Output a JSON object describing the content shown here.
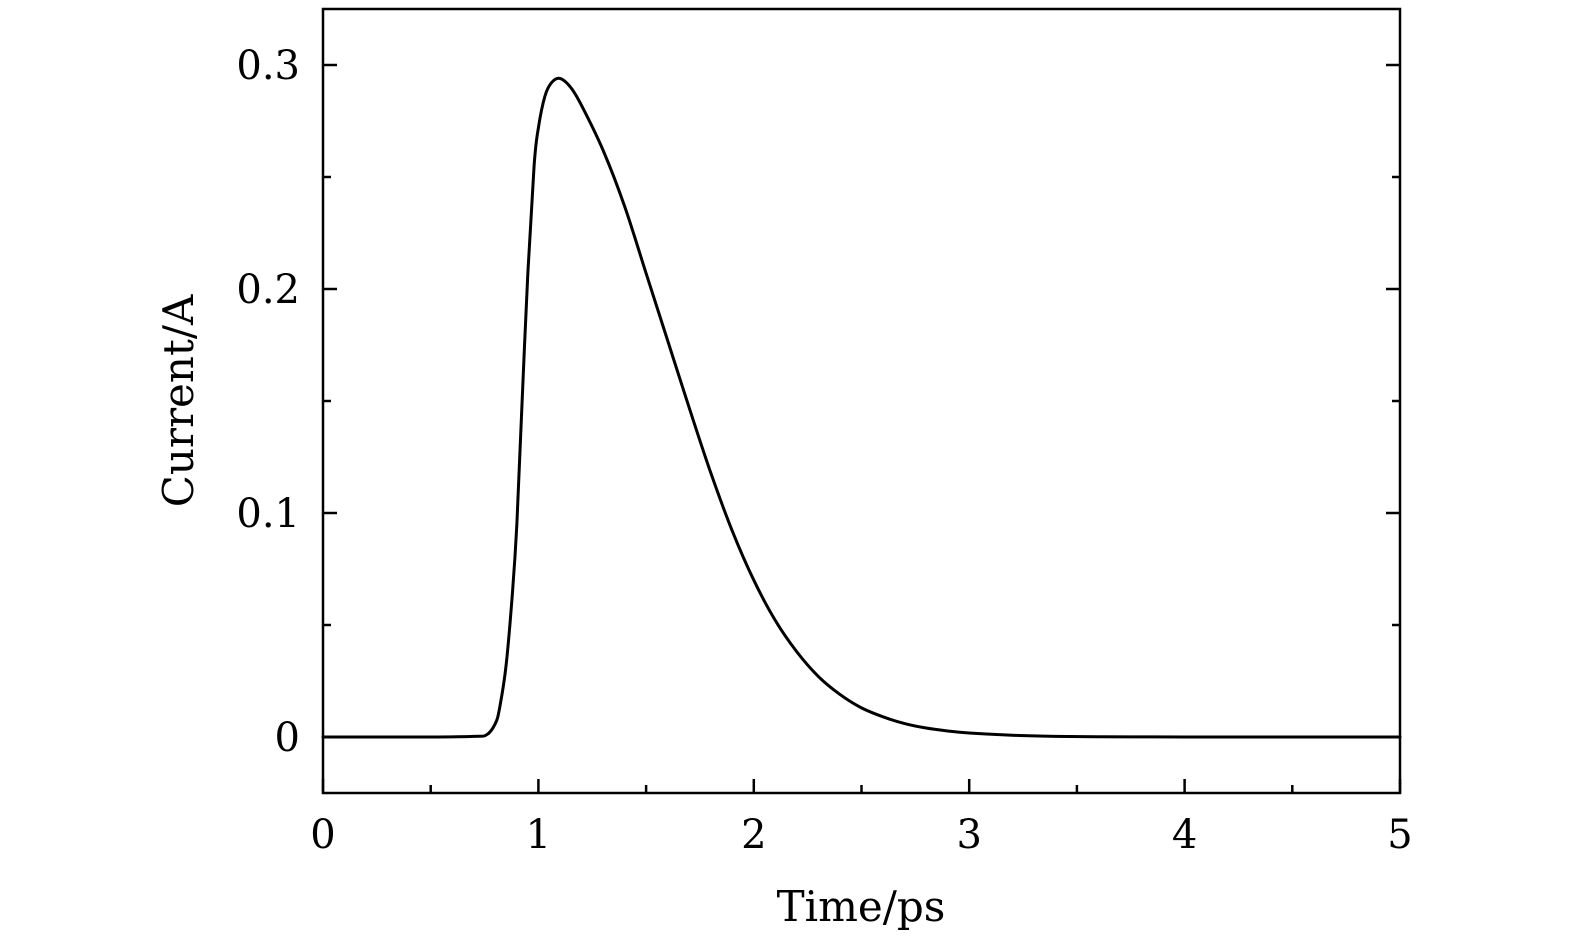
{
  "chart_data": {
    "type": "line",
    "title": "",
    "xlabel": "Time/ps",
    "ylabel": "Current/A",
    "xlim": [
      0,
      5
    ],
    "ylim": [
      -0.025,
      0.325
    ],
    "xticks": [
      0,
      1,
      2,
      3,
      4,
      5
    ],
    "xtick_labels": [
      "0",
      "1",
      "2",
      "3",
      "4",
      "5"
    ],
    "x_minor_ticks": [
      0.5,
      1.5,
      2.5,
      3.5,
      4.5
    ],
    "yticks": [
      0,
      0.1,
      0.2,
      0.3
    ],
    "ytick_labels": [
      "0",
      "0.1",
      "0.2",
      "0.3"
    ],
    "y_minor_ticks": [
      0.05,
      0.15,
      0.25
    ],
    "grid": false,
    "legend": "none",
    "line_color": "#000000",
    "series": [
      {
        "x": [
          0,
          0.25,
          0.5,
          0.7,
          0.76,
          0.8,
          0.82,
          0.85,
          0.88,
          0.9,
          0.92,
          0.95,
          0.98,
          1.0,
          1.03,
          1.06,
          1.1,
          1.15,
          1.2,
          1.3,
          1.4,
          1.5,
          1.6,
          1.7,
          1.8,
          1.9,
          2.0,
          2.1,
          2.2,
          2.3,
          2.4,
          2.5,
          2.6,
          2.7,
          2.8,
          2.9,
          3.0,
          3.2,
          3.4,
          3.6,
          3.8,
          4.0,
          4.5,
          5.0
        ],
        "y": [
          0,
          0,
          0,
          0.0003,
          0.001,
          0.006,
          0.013,
          0.032,
          0.065,
          0.095,
          0.14,
          0.205,
          0.255,
          0.272,
          0.286,
          0.292,
          0.294,
          0.29,
          0.282,
          0.262,
          0.237,
          0.207,
          0.177,
          0.147,
          0.118,
          0.092,
          0.07,
          0.052,
          0.038,
          0.027,
          0.019,
          0.013,
          0.009,
          0.006,
          0.004,
          0.0027,
          0.0018,
          0.0008,
          0.0003,
          0.0001,
          5e-05,
          0,
          0,
          0
        ]
      }
    ]
  }
}
